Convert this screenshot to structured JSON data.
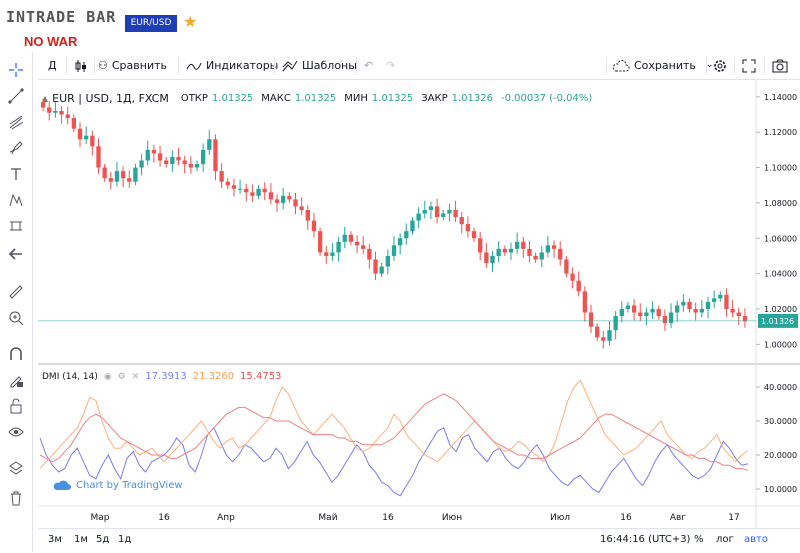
{
  "brand": {
    "logo": "INTRADE BAR",
    "slogan": "NO WAR",
    "pair": "EUR/USD"
  },
  "toolbar": {
    "interval": "Д",
    "compare": "Сравнить",
    "indicators": "Индикаторы",
    "templates": "Шаблоны",
    "save": "Сохранить"
  },
  "legend": {
    "symbol": "EUR | USD, 1Д, FXCM",
    "open_label": "ОТКР",
    "open": "1.01325",
    "high_label": "МАКС",
    "high": "1.01325",
    "low_label": "МИН",
    "low": "1.01325",
    "close_label": "ЗАКР",
    "close": "1.01326",
    "change": "-0.00037 (-0.04%)",
    "last_price": "1.01326"
  },
  "dmi": {
    "label": "DMI (14, 14)",
    "v1": "17.3913",
    "v2": "21.3260",
    "v3": "15.4753"
  },
  "watermark": "Chart by TradingView",
  "bottom": {
    "r1": "3м",
    "r2": "1м",
    "r3": "5д",
    "r4": "1д",
    "time": "16:44:16 (UTC+3)",
    "pct": "%",
    "log": "лог",
    "auto": "авто"
  },
  "colors": {
    "up": "#26a69a",
    "down": "#ef5350",
    "plus_di": "#7b7bf0",
    "minus_di": "#ffb07a",
    "adx": "#f08080"
  },
  "chart_data": [
    {
      "type": "candlestick",
      "title": "EUR | USD, 1Д, FXCM",
      "x_tick_labels": [
        "Мар",
        "16",
        "Апр",
        "Май",
        "16",
        "Июн",
        "Июл",
        "16",
        "Авг",
        "17"
      ],
      "y_tick_labels": [
        "1.14000",
        "1.12000",
        "1.10000",
        "1.08000",
        "1.06000",
        "1.04000",
        "1.02000",
        "1.00000"
      ],
      "ylim": [
        0.99,
        1.145
      ],
      "close": [
        1.134,
        1.131,
        1.132,
        1.13,
        1.128,
        1.122,
        1.116,
        1.118,
        1.112,
        1.1,
        1.094,
        1.092,
        1.098,
        1.094,
        1.092,
        1.1,
        1.104,
        1.11,
        1.108,
        1.104,
        1.102,
        1.106,
        1.104,
        1.102,
        1.1,
        1.102,
        1.11,
        1.116,
        1.098,
        1.092,
        1.09,
        1.088,
        1.088,
        1.086,
        1.084,
        1.088,
        1.086,
        1.082,
        1.08,
        1.084,
        1.082,
        1.078,
        1.076,
        1.07,
        1.064,
        1.052,
        1.05,
        1.052,
        1.058,
        1.062,
        1.058,
        1.056,
        1.054,
        1.048,
        1.04,
        1.044,
        1.05,
        1.056,
        1.06,
        1.064,
        1.07,
        1.074,
        1.076,
        1.078,
        1.072,
        1.074,
        1.076,
        1.072,
        1.068,
        1.064,
        1.06,
        1.052,
        1.046,
        1.05,
        1.054,
        1.052,
        1.054,
        1.058,
        1.054,
        1.05,
        1.048,
        1.052,
        1.056,
        1.054,
        1.048,
        1.04,
        1.036,
        1.03,
        1.018,
        1.01,
        1.004,
        1.002,
        1.008,
        1.016,
        1.02,
        1.022,
        1.018,
        1.016,
        1.018,
        1.02,
        1.016,
        1.012,
        1.018,
        1.022,
        1.024,
        1.02,
        1.018,
        1.02,
        1.024,
        1.026,
        1.028,
        1.02,
        1.018,
        1.016,
        1.013
      ]
    },
    {
      "type": "line",
      "title": "DMI (14, 14)",
      "y_tick_labels": [
        "40.0000",
        "30.0000",
        "20.0000",
        "10.0000"
      ],
      "ylim": [
        5,
        45
      ],
      "series": [
        {
          "name": "17.3913",
          "values": [
            25,
            20,
            17,
            15,
            16,
            20,
            22,
            18,
            14,
            13,
            17,
            20,
            16,
            13,
            19,
            21,
            17,
            15,
            18,
            19,
            20,
            22,
            25,
            23,
            17,
            15,
            20,
            26,
            28,
            24,
            20,
            18,
            20,
            23,
            22,
            20,
            18,
            19,
            22,
            20,
            16,
            18,
            21,
            24,
            20,
            18,
            15,
            12,
            14,
            17,
            20,
            23,
            21,
            17,
            15,
            12,
            11,
            9,
            8,
            11,
            14,
            18,
            21,
            24,
            27,
            28,
            23,
            21,
            25,
            26,
            22,
            20,
            18,
            21,
            22,
            19,
            17,
            16,
            18,
            21,
            23,
            20,
            16,
            14,
            12,
            11,
            13,
            14,
            12,
            10,
            9,
            12,
            15,
            17,
            19,
            16,
            13,
            11,
            14,
            18,
            21,
            23,
            20,
            18,
            16,
            14,
            13,
            14,
            16,
            20,
            24,
            22,
            19,
            17,
            17.4
          ]
        },
        {
          "name": "21.3260",
          "values": [
            16,
            18,
            20,
            22,
            24,
            26,
            28,
            32,
            37,
            36,
            30,
            25,
            22,
            22,
            24,
            22,
            20,
            21,
            22,
            20,
            18,
            20,
            22,
            24,
            26,
            28,
            30,
            27,
            24,
            22,
            24,
            25,
            22,
            23,
            25,
            27,
            29,
            31,
            36,
            40,
            38,
            34,
            30,
            28,
            26,
            28,
            30,
            32,
            30,
            28,
            25,
            22,
            21,
            22,
            24,
            26,
            28,
            32,
            30,
            26,
            24,
            22,
            20,
            19,
            18,
            20,
            22,
            24,
            26,
            28,
            30,
            28,
            26,
            24,
            22,
            21,
            22,
            24,
            23,
            21,
            20,
            18,
            20,
            24,
            30,
            36,
            40,
            42,
            38,
            34,
            30,
            26,
            24,
            22,
            20,
            21,
            22,
            24,
            26,
            28,
            30,
            26,
            24,
            22,
            20,
            19,
            21,
            22,
            24,
            26,
            22,
            20,
            18,
            20,
            21.3
          ]
        },
        {
          "name": "15.4753",
          "values": [
            20,
            19,
            18,
            19,
            21,
            23,
            26,
            29,
            31,
            32,
            31,
            29,
            27,
            25,
            24,
            23,
            22,
            21,
            20,
            20,
            20,
            19,
            19,
            20,
            21,
            22,
            24,
            26,
            28,
            30,
            32,
            33,
            34,
            34,
            33,
            32,
            31,
            31,
            30,
            30,
            30,
            29,
            28,
            27,
            26,
            26,
            26,
            26,
            25,
            25,
            24,
            24,
            23,
            23,
            23,
            23,
            24,
            25,
            27,
            29,
            31,
            33,
            35,
            36,
            37,
            38,
            37,
            36,
            34,
            32,
            30,
            28,
            26,
            24,
            23,
            22,
            21,
            20,
            20,
            19,
            19,
            19,
            20,
            21,
            22,
            23,
            24,
            25,
            27,
            29,
            31,
            32,
            32,
            31,
            30,
            29,
            28,
            27,
            26,
            25,
            24,
            23,
            22,
            21,
            20,
            20,
            19,
            19,
            18,
            18,
            17,
            17,
            16,
            16,
            15.5
          ]
        }
      ]
    }
  ]
}
